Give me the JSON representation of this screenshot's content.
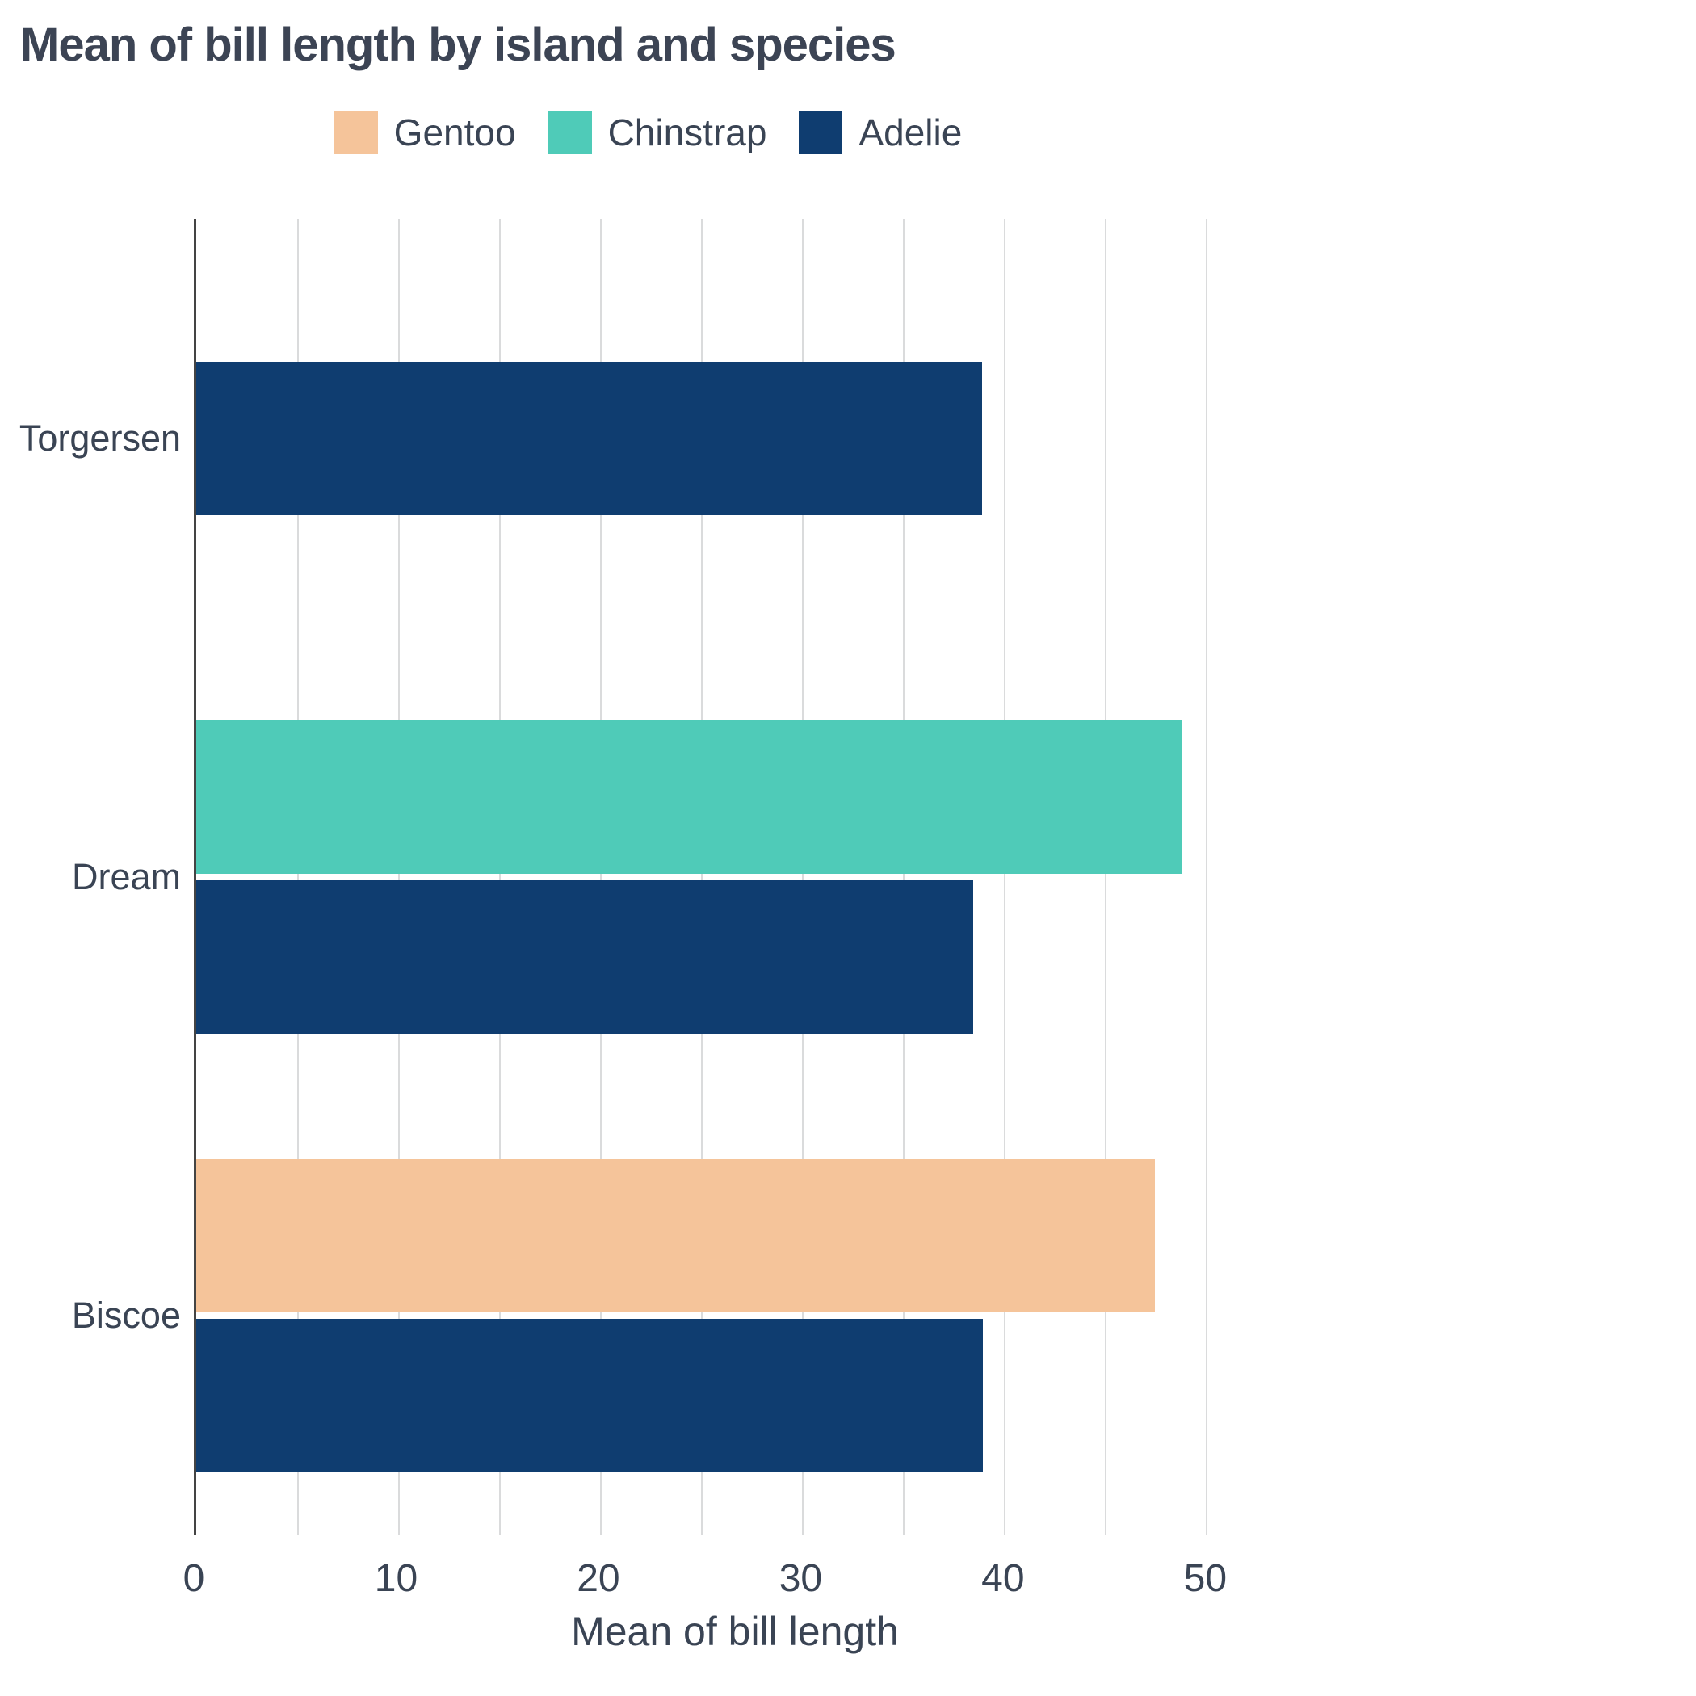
{
  "chart_data": {
    "type": "bar",
    "orientation": "horizontal",
    "title": "Mean of bill length by island and species",
    "xlabel": "Mean of bill length",
    "ylabel": "",
    "categories": [
      "Torgersen",
      "Dream",
      "Biscoe"
    ],
    "series": [
      {
        "name": "Gentoo",
        "color": "#F5C49A",
        "values": [
          null,
          null,
          47.5
        ]
      },
      {
        "name": "Chinstrap",
        "color": "#4FCBB8",
        "values": [
          null,
          48.83,
          null
        ]
      },
      {
        "name": "Adelie",
        "color": "#0F3D70",
        "values": [
          38.95,
          38.5,
          38.98
        ]
      }
    ],
    "xlim": [
      0,
      53.5
    ],
    "xticks": [
      0,
      10,
      20,
      30,
      40,
      50
    ],
    "gridlines_every": 5,
    "legend_position": "top-center",
    "grid": true,
    "text_color": "#3A4454",
    "gridline_color": "#DADBDC",
    "axis_line_color": "#444444"
  }
}
